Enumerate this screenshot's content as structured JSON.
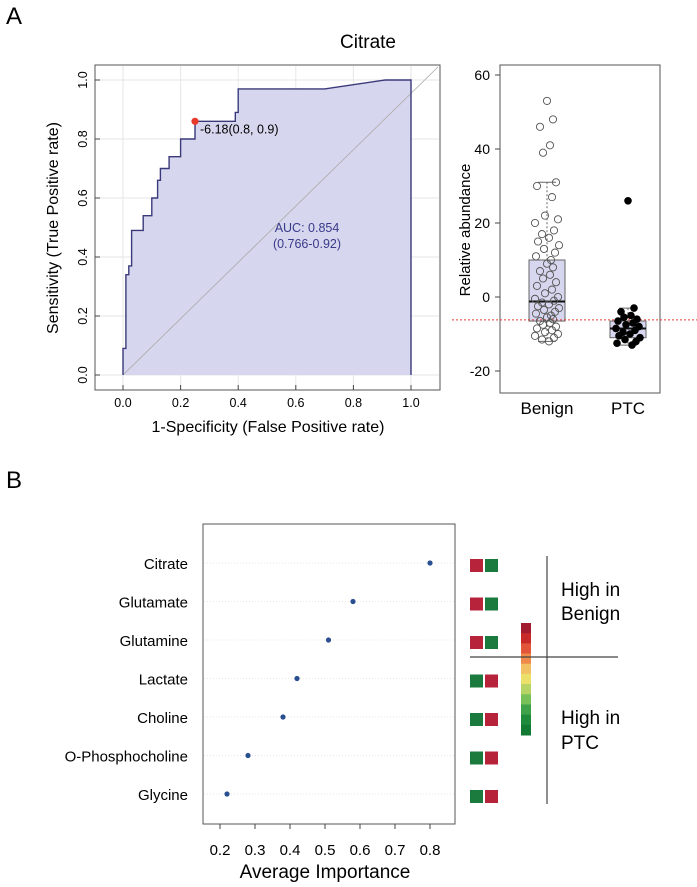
{
  "panels": {
    "a": "A",
    "b": "B"
  },
  "chart_data": [
    {
      "type": "line",
      "subtype": "roc",
      "title": "Citrate",
      "xlabel": "1-Specificity (False Positive rate)",
      "ylabel": "Sensitivity (True Positive rate)",
      "xlim": [
        0,
        1
      ],
      "ylim": [
        0,
        1
      ],
      "xticks": [
        "0.0",
        "0.2",
        "0.4",
        "0.6",
        "0.8",
        "1.0"
      ],
      "yticks": [
        "0.0",
        "0.2",
        "0.4",
        "0.6",
        "0.8",
        "1.0"
      ],
      "grid": true,
      "curve": {
        "x": [
          0,
          0,
          0.01,
          0.01,
          0.02,
          0.02,
          0.03,
          0.03,
          0.04,
          0.04,
          0.05,
          0.05,
          0.07,
          0.07,
          0.1,
          0.1,
          0.12,
          0.12,
          0.13,
          0.13,
          0.16,
          0.16,
          0.18,
          0.18,
          0.2,
          0.2,
          0.25,
          0.25,
          0.39,
          0.39,
          0.4,
          0.4,
          0.7,
          0.91,
          1.0
        ],
        "y": [
          0,
          0.09,
          0.09,
          0.34,
          0.34,
          0.37,
          0.37,
          0.49,
          0.49,
          0.49,
          0.49,
          0.49,
          0.49,
          0.54,
          0.54,
          0.6,
          0.6,
          0.66,
          0.66,
          0.7,
          0.7,
          0.74,
          0.74,
          0.74,
          0.74,
          0.8,
          0.8,
          0.86,
          0.86,
          0.89,
          0.89,
          0.97,
          0.97,
          1.0,
          1.0
        ]
      },
      "cutoff_point": {
        "x": 0.25,
        "y": 0.86,
        "label": "-6.18(0.8, 0.9)",
        "color": "#e8392b"
      },
      "auc_label": "AUC: 0.854",
      "ci_label": "(0.766-0.92)",
      "fill_color": "#d6d6ee",
      "line_color": "#3a3a7a"
    },
    {
      "type": "scatter",
      "subtype": "box_strip",
      "ylabel": "Relative abundance",
      "ylim": [
        -22,
        62
      ],
      "yticks": [
        "-20",
        "0",
        "20",
        "40",
        "60"
      ],
      "categories": [
        "Benign",
        "PTC"
      ],
      "threshold": -6.18,
      "boxes": [
        {
          "name": "Benign",
          "q1": -6.5,
          "median": -1.2,
          "q3": 10,
          "whisker_low": -12,
          "whisker_high": 31
        },
        {
          "name": "PTC",
          "q1": -11,
          "median": -8.5,
          "q3": -6.5,
          "whisker_low": -13,
          "whisker_high": -3
        }
      ],
      "series": [
        {
          "name": "Benign",
          "marker": "open",
          "values": [
            53,
            48,
            46,
            41,
            39,
            31,
            30,
            27,
            22,
            21,
            20,
            18,
            17,
            16,
            15,
            14,
            13,
            12,
            11,
            10,
            9,
            8,
            7,
            6,
            5,
            4,
            3,
            2,
            1,
            0,
            -0.5,
            -1,
            -1.5,
            -2,
            -2.5,
            -3,
            -3.5,
            -4,
            -4.5,
            -5,
            -5.5,
            -6,
            -6.5,
            -7,
            -7.5,
            -8,
            -8.5,
            -9,
            -9.5,
            -10,
            -10.5,
            -11,
            -11.5,
            -12
          ]
        },
        {
          "name": "PTC",
          "marker": "filled",
          "values": [
            26,
            -3,
            -4,
            -5,
            -5.5,
            -6,
            -6.5,
            -7,
            -7.5,
            -8,
            -8.5,
            -9,
            -9.5,
            -10,
            -10.5,
            -11,
            -11.5,
            -12,
            -12.5,
            -13
          ]
        }
      ]
    },
    {
      "type": "scatter",
      "subtype": "dot_plot",
      "xlabel": "Average Importance",
      "xlim": [
        0.14,
        0.86
      ],
      "xticks": [
        "0.2",
        "0.3",
        "0.4",
        "0.5",
        "0.6",
        "0.7",
        "0.8"
      ],
      "categories": [
        "Citrate",
        "Glutamate",
        "Glutamine",
        "Lactate",
        "Choline",
        "O-Phosphocholine",
        "Glycine"
      ],
      "values": [
        0.8,
        0.58,
        0.51,
        0.42,
        0.38,
        0.28,
        0.22
      ],
      "heat_pairs": [
        [
          "#b8233c",
          "#1b7a3e"
        ],
        [
          "#b8233c",
          "#1b7a3e"
        ],
        [
          "#b8233c",
          "#1b7a3e"
        ],
        [
          "#1b7a3e",
          "#b8233c"
        ],
        [
          "#1b7a3e",
          "#b8233c"
        ],
        [
          "#1b7a3e",
          "#b8233c"
        ],
        [
          "#1b7a3e",
          "#b8233c"
        ]
      ],
      "group_labels": {
        "high_benign": [
          "High in",
          "Benign"
        ],
        "high_ptc": [
          "High in",
          "PTC"
        ]
      },
      "dot_color": "#2a4f91",
      "color_scale": [
        "#a11c2f",
        "#c82a2a",
        "#e2553a",
        "#ef8a4a",
        "#f3c165",
        "#eae06a",
        "#b6d465",
        "#78c05a",
        "#3da24a",
        "#1e8a3c",
        "#137a34"
      ]
    }
  ]
}
